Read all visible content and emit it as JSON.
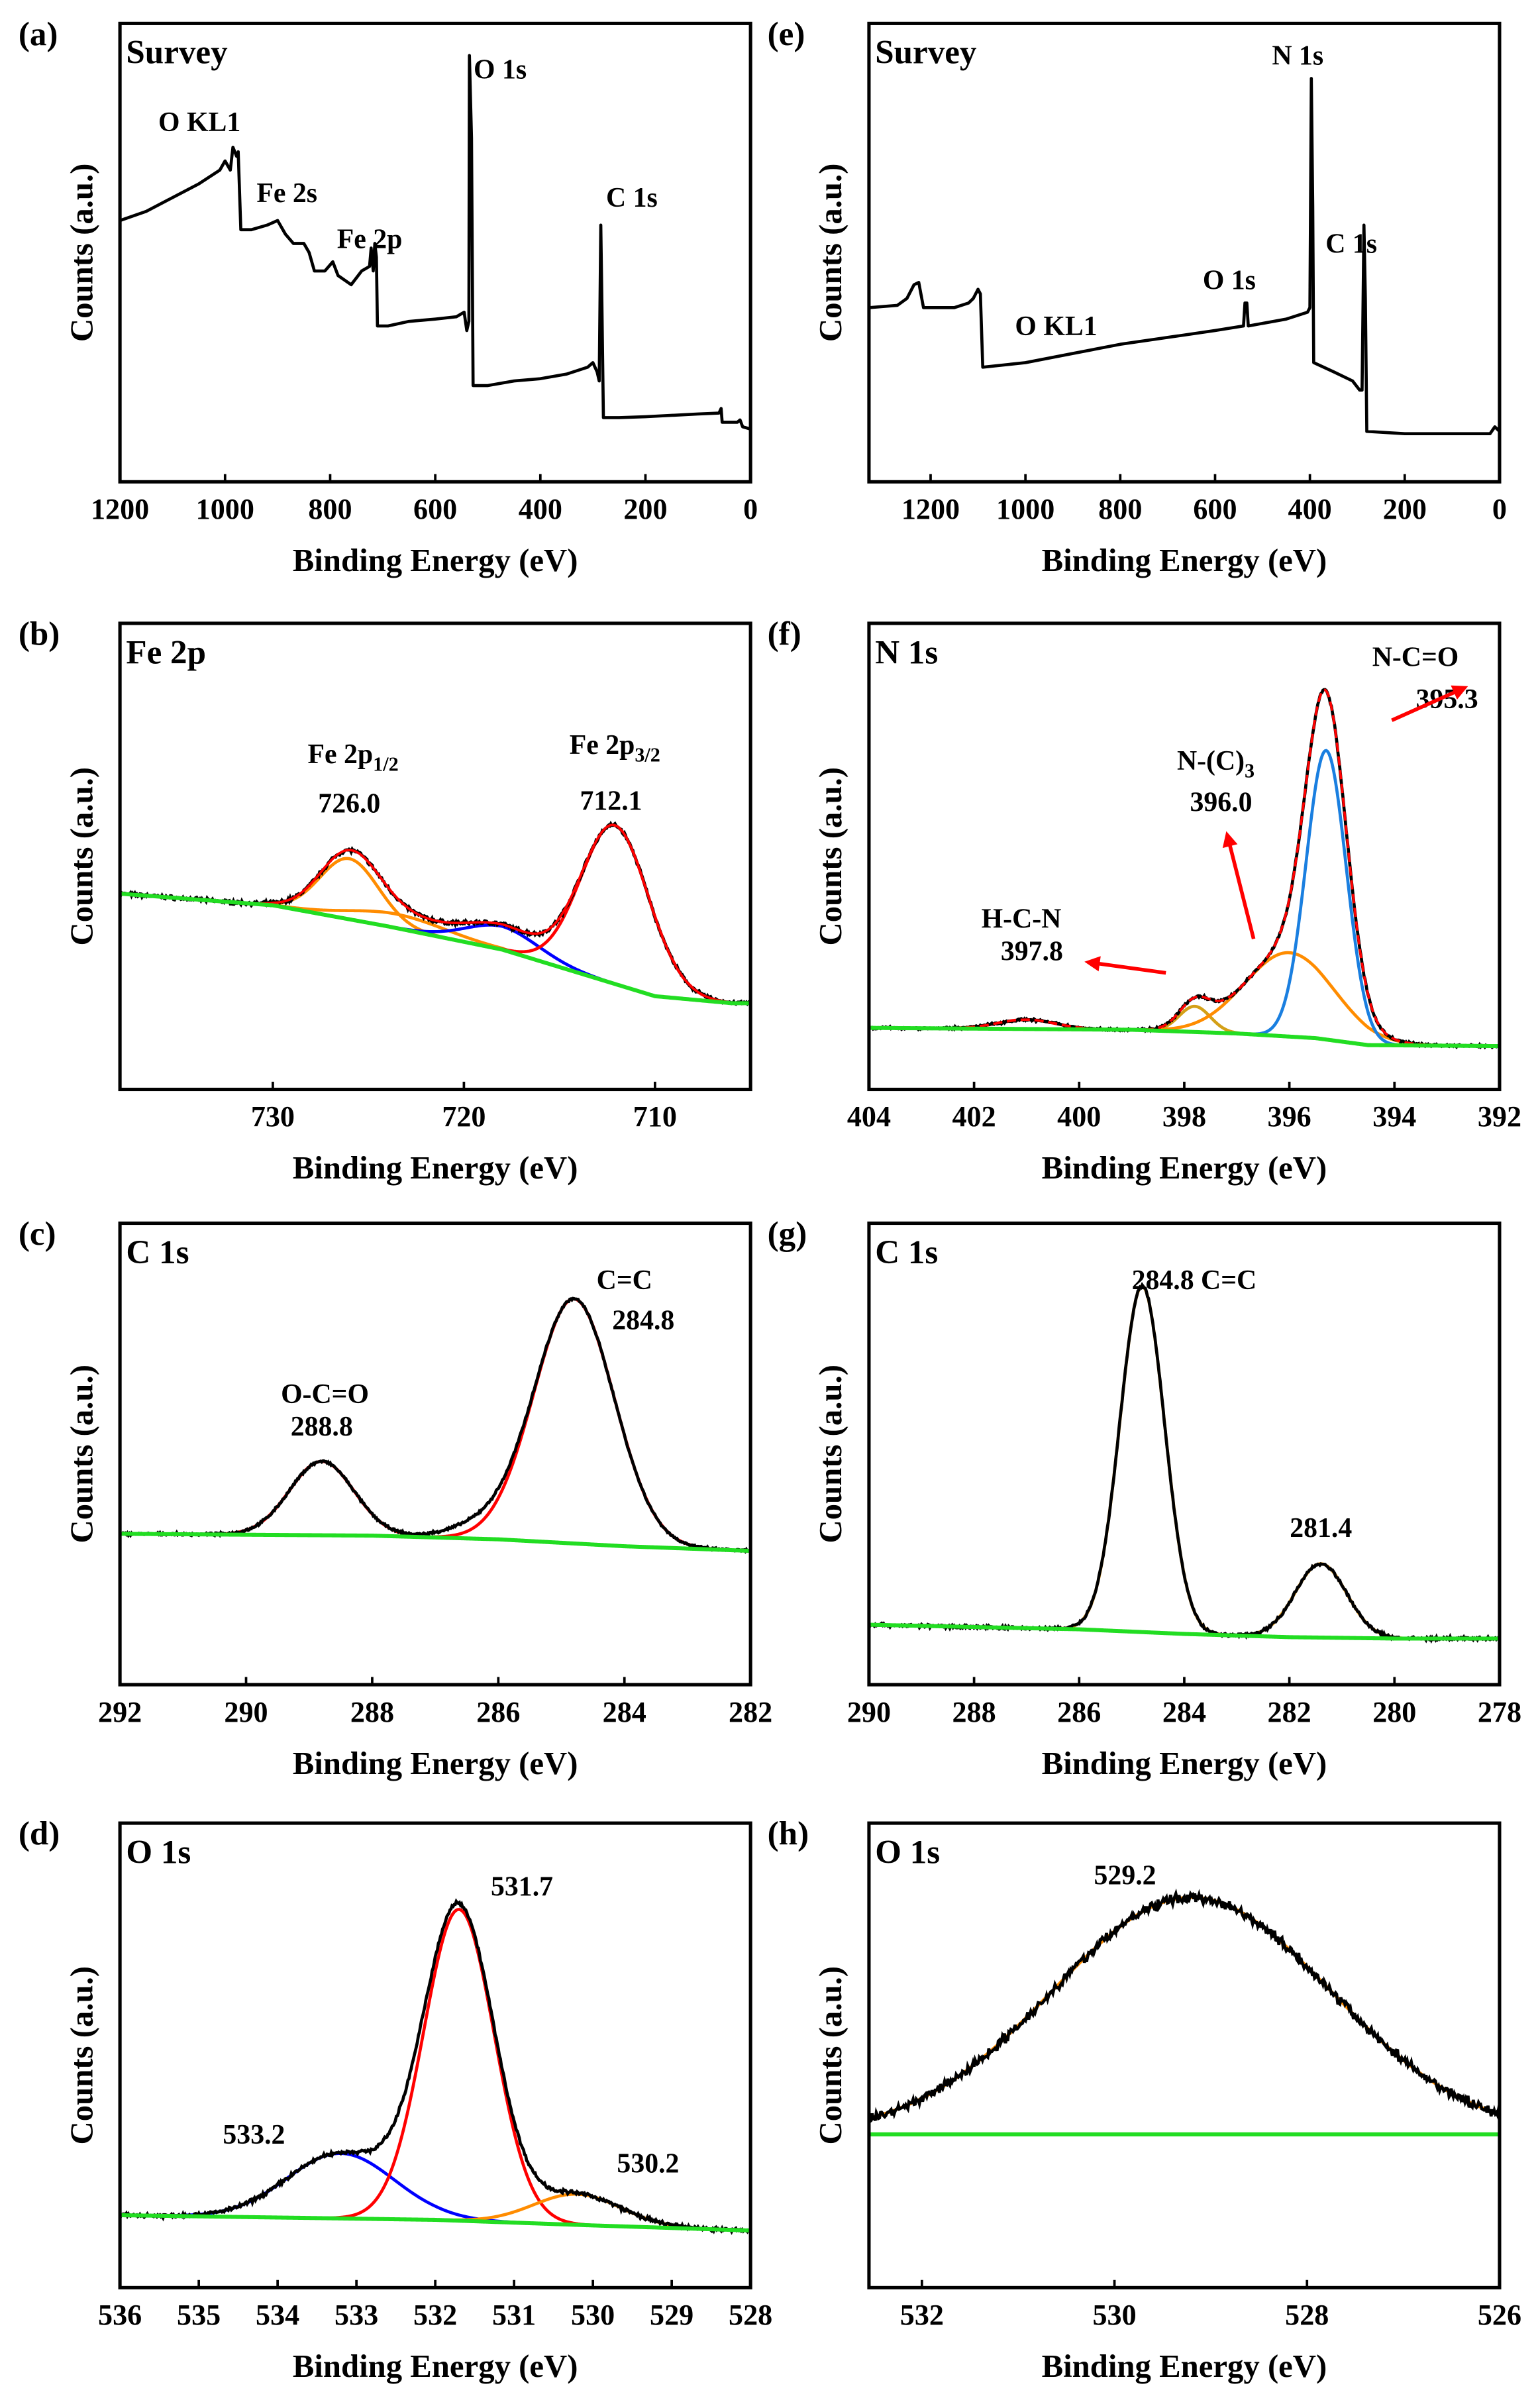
{
  "chart_data": [
    {
      "panel": "(a)",
      "type": "line",
      "title": "Survey",
      "xlabel": "Binding Energy (eV)",
      "ylabel": "Counts (a.u.)",
      "xlim": [
        1200,
        0
      ],
      "ylim": [
        0,
        100
      ],
      "xticks": [
        1200,
        1000,
        800,
        600,
        400,
        200,
        0
      ],
      "series": [
        {
          "color": "#000000",
          "points": [
            [
              1200,
              57
            ],
            [
              1150,
              59
            ],
            [
              1100,
              62
            ],
            [
              1050,
              65
            ],
            [
              1010,
              68
            ],
            [
              1000,
              70
            ],
            [
              990,
              68
            ],
            [
              985,
              73
            ],
            [
              978,
              71
            ],
            [
              975,
              72
            ],
            [
              970,
              55
            ],
            [
              950,
              55
            ],
            [
              920,
              56
            ],
            [
              900,
              57
            ],
            [
              885,
              54
            ],
            [
              870,
              52
            ],
            [
              850,
              52
            ],
            [
              840,
              50
            ],
            [
              830,
              46
            ],
            [
              810,
              46
            ],
            [
              795,
              48
            ],
            [
              785,
              45
            ],
            [
              760,
              43
            ],
            [
              740,
              46
            ],
            [
              725,
              47
            ],
            [
              722,
              51
            ],
            [
              718,
              46
            ],
            [
              715,
              52
            ],
            [
              712,
              49
            ],
            [
              710,
              34
            ],
            [
              690,
              34
            ],
            [
              650,
              35
            ],
            [
              600,
              35.5
            ],
            [
              560,
              36
            ],
            [
              545,
              37
            ],
            [
              540,
              33
            ],
            [
              536,
              35
            ],
            [
              535,
              93
            ],
            [
              531,
              75
            ],
            [
              528,
              21
            ],
            [
              500,
              21
            ],
            [
              450,
              22
            ],
            [
              400,
              22.5
            ],
            [
              350,
              23.5
            ],
            [
              310,
              25
            ],
            [
              300,
              26
            ],
            [
              292,
              24
            ],
            [
              288,
              22
            ],
            [
              285,
              56
            ],
            [
              283,
              40
            ],
            [
              280,
              14
            ],
            [
              250,
              14
            ],
            [
              200,
              14.2
            ],
            [
              100,
              14.8
            ],
            [
              60,
              15
            ],
            [
              56,
              16
            ],
            [
              54,
              13
            ],
            [
              25,
              13
            ],
            [
              20,
              13.5
            ],
            [
              15,
              12
            ],
            [
              0,
              11.5
            ]
          ]
        }
      ],
      "annotations": [
        {
          "text": "O KL1",
          "x": 1127,
          "y": 76.5
        },
        {
          "text": "Fe 2s",
          "x": 940,
          "y": 61
        },
        {
          "text": "Fe 2p",
          "x": 787,
          "y": 51
        },
        {
          "text": "O 1s",
          "x": 527,
          "y": 88
        },
        {
          "text": "C 1s",
          "x": 275,
          "y": 60
        }
      ]
    },
    {
      "panel": "(b)",
      "type": "line",
      "title": "Fe 2p",
      "xlabel": "Binding Energy (eV)",
      "ylabel": "Counts (a.u.)",
      "xlim": [
        738,
        705
      ],
      "ylim": [
        0,
        100
      ],
      "xticks": [
        730,
        720,
        710
      ],
      "background": {
        "color": "#22dd22",
        "points": [
          [
            738,
            42
          ],
          [
            730,
            39.5
          ],
          [
            724,
            35
          ],
          [
            718,
            30
          ],
          [
            714,
            25
          ],
          [
            710,
            20
          ],
          [
            706,
            18.5
          ],
          [
            705,
            18.5
          ]
        ]
      },
      "components": [
        {
          "center": 726.0,
          "fwhm": 3.6,
          "height": 13,
          "color": "#ff8c00"
        },
        {
          "center": 723.5,
          "fwhm": 6,
          "height": 3,
          "color": "#ff8c00"
        },
        {
          "center": 718.0,
          "fwhm": 4.5,
          "height": 5,
          "color": "#0000ff"
        },
        {
          "center": 712.1,
          "fwhm": 4.2,
          "height": 34,
          "color": "#ff0000"
        }
      ],
      "envelope_color": "#ff0000",
      "annotations": [
        {
          "text": "Fe 2p",
          "sub": "1/2",
          "x": 725.8,
          "y": 70,
          "anchor": "middle"
        },
        {
          "text": "726.0",
          "x": 726.0,
          "y": 59.4,
          "anchor": "middle"
        },
        {
          "text": "Fe 2p",
          "sub": "3/2",
          "x": 712.1,
          "y": 72,
          "anchor": "middle"
        },
        {
          "text": "712.1",
          "x": 712.3,
          "y": 60,
          "anchor": "middle"
        }
      ]
    },
    {
      "panel": "(c)",
      "type": "line",
      "title": "C 1s",
      "xlabel": "Binding Energy (eV)",
      "ylabel": "Counts (a.u.)",
      "xlim": [
        292,
        282
      ],
      "ylim": [
        0,
        100
      ],
      "xticks": [
        292,
        290,
        288,
        286,
        284,
        282
      ],
      "background": {
        "color": "#22dd22",
        "points": [
          [
            292,
            32.7
          ],
          [
            288,
            32.3
          ],
          [
            286,
            31.5
          ],
          [
            284,
            30
          ],
          [
            282,
            29
          ]
        ]
      },
      "components": [
        {
          "center": 288.8,
          "fwhm": 1.2,
          "height": 16,
          "color": "#ff0000"
        },
        {
          "center": 284.8,
          "fwhm": 1.5,
          "height": 53,
          "color": "#ff0000"
        },
        {
          "center": 286.3,
          "fwhm": 1.2,
          "height": 2.5,
          "color": "none"
        }
      ],
      "annotations": [
        {
          "text": "O-C=O",
          "x": 288.75,
          "y": 61,
          "anchor": "middle"
        },
        {
          "text": "288.8",
          "x": 288.8,
          "y": 54,
          "anchor": "middle"
        },
        {
          "text": "C=C",
          "x": 284.0,
          "y": 85.7,
          "anchor": "middle"
        },
        {
          "text": "284.8",
          "x": 283.7,
          "y": 77,
          "anchor": "middle"
        }
      ]
    },
    {
      "panel": "(d)",
      "type": "line",
      "title": "O 1s",
      "xlabel": "Binding Energy (eV)",
      "ylabel": "Counts (a.u.)",
      "xlim": [
        536,
        528
      ],
      "ylim": [
        0,
        100
      ],
      "xticks": [
        536,
        535,
        534,
        533,
        532,
        531,
        530,
        529,
        528
      ],
      "background": {
        "color": "#22dd22",
        "points": [
          [
            536,
            15.6
          ],
          [
            532,
            14.6
          ],
          [
            530,
            13.4
          ],
          [
            528,
            12.3
          ]
        ]
      },
      "components": [
        {
          "center": 533.2,
          "fwhm": 1.6,
          "height": 14,
          "color": "#0000ff"
        },
        {
          "center": 531.7,
          "fwhm": 1.05,
          "height": 67,
          "color": "#ff0000"
        },
        {
          "center": 530.2,
          "fwhm": 1.3,
          "height": 6.6,
          "color": "#ff8c00"
        }
      ],
      "annotations": [
        {
          "text": "531.7",
          "x": 530.9,
          "y": 84.4,
          "anchor": "middle"
        },
        {
          "text": "533.2",
          "x": 534.3,
          "y": 31,
          "anchor": "middle"
        },
        {
          "text": "530.2",
          "x": 529.3,
          "y": 24.8,
          "anchor": "middle"
        }
      ]
    },
    {
      "panel": "(e)",
      "type": "line",
      "title": "Survey",
      "xlabel": "Binding Energy (eV)",
      "ylabel": "Counts (a.u.)",
      "xlim": [
        1330,
        0
      ],
      "ylim": [
        0,
        100
      ],
      "xticks": [
        1200,
        1000,
        800,
        600,
        400,
        200,
        0
      ],
      "series": [
        {
          "color": "#000000",
          "points": [
            [
              1330,
              38
            ],
            [
              1270,
              38.5
            ],
            [
              1250,
              40
            ],
            [
              1235,
              43
            ],
            [
              1225,
              43.5
            ],
            [
              1215,
              38
            ],
            [
              1150,
              38
            ],
            [
              1120,
              39
            ],
            [
              1110,
              40
            ],
            [
              1100,
              42
            ],
            [
              1095,
              41
            ],
            [
              1090,
              25
            ],
            [
              1000,
              26
            ],
            [
              900,
              28
            ],
            [
              800,
              30
            ],
            [
              700,
              31.5
            ],
            [
              600,
              33
            ],
            [
              540,
              34
            ],
            [
              537,
              39
            ],
            [
              533,
              39
            ],
            [
              530,
              34
            ],
            [
              450,
              35.5
            ],
            [
              405,
              37
            ],
            [
              400,
              38
            ],
            [
              397,
              88
            ],
            [
              394,
              60
            ],
            [
              392,
              26
            ],
            [
              350,
              24
            ],
            [
              310,
              22
            ],
            [
              295,
              20
            ],
            [
              290,
              20
            ],
            [
              286,
              56
            ],
            [
              283,
              40
            ],
            [
              280,
              11
            ],
            [
              200,
              10.5
            ],
            [
              100,
              10.5
            ],
            [
              20,
              10.5
            ],
            [
              10,
              12
            ],
            [
              0,
              11
            ]
          ]
        }
      ],
      "annotations": [
        {
          "text": "O KL1",
          "x": 1022,
          "y": 32
        },
        {
          "text": "O 1s",
          "x": 626,
          "y": 42
        },
        {
          "text": "N 1s",
          "x": 480,
          "y": 91
        },
        {
          "text": "C 1s",
          "x": 367,
          "y": 50
        }
      ]
    },
    {
      "panel": "(f)",
      "type": "line",
      "title": "N 1s",
      "xlabel": "Binding Energy (eV)",
      "ylabel": "Counts (a.u.)",
      "xlim": [
        404,
        392
      ],
      "ylim": [
        0,
        100
      ],
      "xticks": [
        404,
        402,
        400,
        398,
        396,
        394,
        392
      ],
      "background": {
        "color": "#22dd22",
        "points": [
          [
            404,
            13.2
          ],
          [
            399,
            12.8
          ],
          [
            397,
            12
          ],
          [
            395.5,
            11
          ],
          [
            394.5,
            9.5
          ],
          [
            392,
            9.3
          ]
        ]
      },
      "components": [
        {
          "center": 401.0,
          "fwhm": 1.3,
          "height": 2,
          "color": "#ff0000"
        },
        {
          "center": 397.8,
          "fwhm": 0.7,
          "height": 5.5,
          "color": "#d4a017"
        },
        {
          "center": 396.0,
          "fwhm": 2.0,
          "height": 18,
          "color": "#ff8c00"
        },
        {
          "center": 395.3,
          "fwhm": 0.9,
          "height": 62,
          "color": "#1a7fe0"
        }
      ],
      "envelope_color": "#ff0000",
      "annotations": [
        {
          "text": "N-C=O",
          "x": 393.6,
          "y": 90.8,
          "anchor": "middle"
        },
        {
          "text": "395.3",
          "x": 393.0,
          "y": 81.8,
          "anchor": "middle"
        },
        {
          "text": "N-(C)",
          "sub": "3",
          "x": 397.4,
          "y": 68.6,
          "anchor": "middle"
        },
        {
          "text": "396.0",
          "x": 397.3,
          "y": 59.7,
          "anchor": "middle"
        },
        {
          "text": "H-C-N",
          "x": 401.1,
          "y": 34.7,
          "anchor": "middle"
        },
        {
          "text": "397.8",
          "x": 400.9,
          "y": 27.7,
          "anchor": "middle"
        }
      ],
      "arrows": [
        {
          "from": [
            394.05,
            79.2
          ],
          "to": [
            392.6,
            86.5
          ],
          "color": "#ff0000"
        },
        {
          "from": [
            396.68,
            32.3
          ],
          "to": [
            397.2,
            55.4
          ],
          "color": "#ff0000"
        },
        {
          "from": [
            398.35,
            25
          ],
          "to": [
            399.9,
            27.4
          ],
          "color": "#ff0000"
        }
      ]
    },
    {
      "panel": "(g)",
      "type": "line",
      "title": "C 1s",
      "xlabel": "Binding Energy (eV)",
      "ylabel": "Counts (a.u.)",
      "xlim": [
        290,
        278
      ],
      "ylim": [
        0,
        100
      ],
      "xticks": [
        290,
        288,
        286,
        284,
        282,
        280,
        278
      ],
      "background": {
        "color": "#22dd22",
        "points": [
          [
            290,
            13
          ],
          [
            286,
            12
          ],
          [
            284,
            11
          ],
          [
            282,
            10.3
          ],
          [
            280,
            10
          ],
          [
            278,
            10
          ]
        ]
      },
      "components": [
        {
          "center": 284.8,
          "fwhm": 1.0,
          "height": 75,
          "color": "#e8a020"
        },
        {
          "center": 281.4,
          "fwhm": 1.15,
          "height": 16,
          "color": "#e8a020"
        }
      ],
      "annotations": [
        {
          "text": "284.8 C=C",
          "x": 285.0,
          "y": 85.7,
          "anchor": "start"
        },
        {
          "text": "281.4",
          "x": 281.4,
          "y": 32,
          "anchor": "middle"
        }
      ]
    },
    {
      "panel": "(h)",
      "type": "line",
      "title": "O 1s",
      "xlabel": "Binding Energy (eV)",
      "ylabel": "Counts (a.u.)",
      "xlim": [
        532.55,
        526
      ],
      "ylim": [
        0,
        100
      ],
      "xticks": [
        532,
        530,
        528,
        526
      ],
      "background": {
        "color": "#22dd22",
        "points": [
          [
            532.55,
            33
          ],
          [
            526,
            33
          ]
        ]
      },
      "components": [
        {
          "center": 529.2,
          "fwhm": 3.4,
          "height": 51,
          "color": "#ff8c00"
        }
      ],
      "annotations": [
        {
          "text": "529.2",
          "x": 529.89,
          "y": 86.8,
          "anchor": "middle"
        }
      ]
    }
  ]
}
